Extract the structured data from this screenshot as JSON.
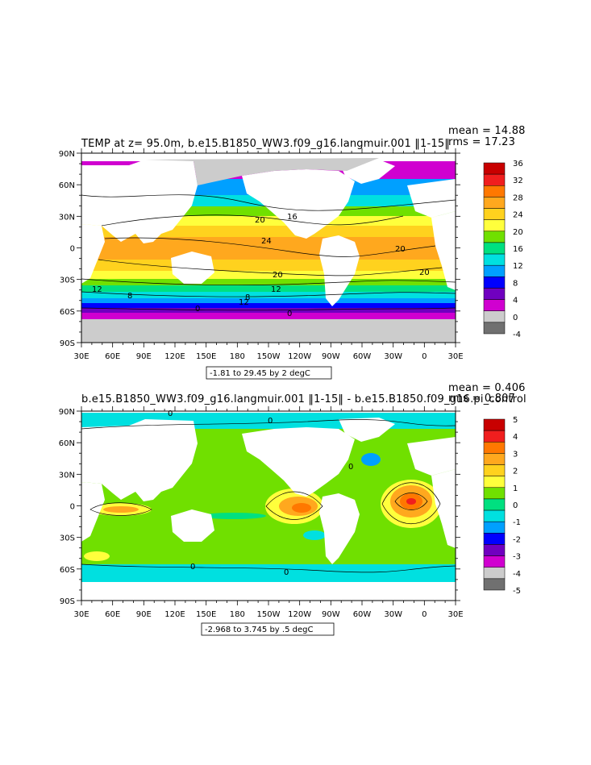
{
  "panels": [
    {
      "title": "TEMP at z=   95.0m, b.e15.B1850_WW3.f09_g16.langmuir.001 ‖1-15‖",
      "mean_text": "mean = 14.88",
      "rms_text": "rms = 17.23",
      "range_text": "-1.81 to 29.45 by 2 degC",
      "x_ticks": [
        "30E",
        "60E",
        "90E",
        "120E",
        "150E",
        "180",
        "150W",
        "120W",
        "90W",
        "60W",
        "30W",
        "0",
        "30E"
      ],
      "y_ticks": [
        "90N",
        "60N",
        "30N",
        "0",
        "30S",
        "60S",
        "90S"
      ],
      "contour_labels": [
        "20",
        "16",
        "24",
        "20",
        "12",
        "20",
        "20",
        "12",
        "8",
        "12",
        "8",
        "0",
        "0"
      ],
      "colorbar_labels": [
        "36",
        "32",
        "28",
        "24",
        "20",
        "16",
        "12",
        "8",
        "4",
        "0",
        "-4"
      ],
      "colorbar_colors": [
        "#c80000",
        "#f01e1e",
        "#ff7800",
        "#ffa81e",
        "#ffd21e",
        "#ffff3c",
        "#70e000",
        "#00e080",
        "#00e0e0",
        "#00a0ff",
        "#0000ff",
        "#7000c0",
        "#d000d0",
        "#cccccc",
        "#707070"
      ]
    },
    {
      "title": "b.e15.B1850_WW3.f09_g16.langmuir.001 ‖1-15‖ - b.e15.B1850.f09_g16.pi_control",
      "mean_text": "mean = 0.406",
      "rms_text": "rms = 0.807",
      "range_text": "-2.968 to 3.745 by .5 degC",
      "x_ticks": [
        "30E",
        "60E",
        "90E",
        "120E",
        "150E",
        "180",
        "150W",
        "120W",
        "90W",
        "60W",
        "30W",
        "0",
        "30E"
      ],
      "y_ticks": [
        "90N",
        "60N",
        "30N",
        "0",
        "30S",
        "60S",
        "90S"
      ],
      "contour_labels": [
        "0",
        "0",
        "0",
        "0",
        "0"
      ],
      "colorbar_labels": [
        "5",
        "4",
        "3",
        "2",
        "1",
        "0",
        "-1",
        "-2",
        "-3",
        "-4",
        "-5"
      ],
      "colorbar_colors": [
        "#c80000",
        "#f01e1e",
        "#ff7800",
        "#ffa81e",
        "#ffd21e",
        "#ffff3c",
        "#70e000",
        "#00e080",
        "#00e0e0",
        "#00a0ff",
        "#0000ff",
        "#7000c0",
        "#d000d0",
        "#cccccc",
        "#707070"
      ]
    }
  ],
  "chart_data": [
    {
      "type": "heatmap",
      "title": "TEMP at z=   95.0m, b.e15.B1850_WW3.f09_g16.langmuir.001 ‖1-15‖",
      "xlim": [
        30,
        390
      ],
      "ylim": [
        -90,
        90
      ],
      "value_range": [
        -1.81,
        29.45
      ],
      "contour_interval": 2,
      "units": "degC",
      "mean": 14.88,
      "rms": 17.23,
      "colorbar_levels": [
        -4,
        0,
        4,
        8,
        12,
        16,
        20,
        24,
        28,
        32,
        36
      ]
    },
    {
      "type": "heatmap",
      "title": "b.e15.B1850_WW3.f09_g16.langmuir.001 ‖1-15‖ - b.e15.B1850.f09_g16.pi_control",
      "xlim": [
        30,
        390
      ],
      "ylim": [
        -90,
        90
      ],
      "value_range": [
        -2.968,
        3.745
      ],
      "contour_interval": 0.5,
      "units": "degC",
      "mean": 0.406,
      "rms": 0.807,
      "colorbar_levels": [
        -5,
        -4,
        -3,
        -2,
        -1,
        0,
        1,
        2,
        3,
        4,
        5
      ]
    }
  ]
}
